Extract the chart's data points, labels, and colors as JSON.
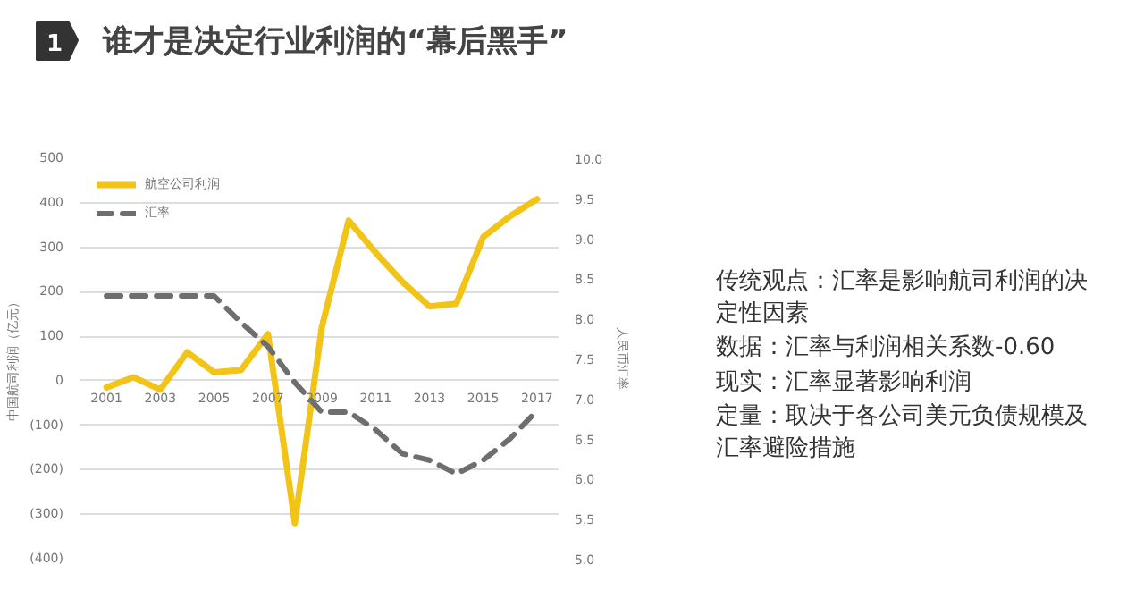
{
  "chart_data": {
    "type": "line",
    "title": "谁才是决定行业利润的“幕后黑手”",
    "ylabel": "中国航司利润（亿元）",
    "y2label": "人民币汇率",
    "x": [
      2001,
      2002,
      2003,
      2004,
      2005,
      2006,
      2007,
      2008,
      2009,
      2010,
      2011,
      2012,
      2013,
      2014,
      2015,
      2016,
      2017
    ],
    "series": [
      {
        "name": "航空公司利润",
        "color": "#f2c417",
        "line_style": "solid",
        "values": [
          -15,
          8,
          -20,
          64,
          19,
          24,
          105,
          -320,
          120,
          360,
          288,
          222,
          167,
          173,
          323,
          370,
          408
        ]
      },
      {
        "name": "汇率",
        "color": "#6e6e6e",
        "line_style": "dashed",
        "axis": "y2",
        "values": [
          8.28,
          8.28,
          8.28,
          8.28,
          8.28,
          7.95,
          7.65,
          7.2,
          6.83,
          6.83,
          6.61,
          6.31,
          6.23,
          6.06,
          6.23,
          6.5,
          6.85
        ]
      }
    ],
    "xlim": [
      2000,
      2017.8
    ],
    "xticks": [
      2001,
      2003,
      2005,
      2007,
      2009,
      2011,
      2013,
      2015,
      2017
    ],
    "ylim": [
      -400,
      500
    ],
    "yticks": [
      {
        "value": -400,
        "label": "(400)"
      },
      {
        "value": -300,
        "label": "(300)"
      },
      {
        "value": -200,
        "label": "(200)"
      },
      {
        "value": -100,
        "label": "(100)"
      },
      0,
      100,
      200,
      300,
      400,
      500
    ],
    "y2lim": [
      5,
      10
    ],
    "y2ticks": [
      {
        "value": 5,
        "label": "5.0"
      },
      {
        "value": 5.5,
        "label": "5.5"
      },
      {
        "value": 6,
        "label": "6.0"
      },
      {
        "value": 6.5,
        "label": "6.5"
      },
      {
        "value": 7,
        "label": "7.0"
      },
      {
        "value": 7.5,
        "label": "7.5"
      },
      {
        "value": 8,
        "label": "8.0"
      },
      {
        "value": 8.5,
        "label": "8.5"
      },
      {
        "value": 9,
        "label": "9.0"
      },
      {
        "value": 9.5,
        "label": "9.5"
      },
      {
        "value": 10,
        "label": "10.0"
      }
    ],
    "grid": "y",
    "legend": "top left",
    "annotations": [
      "1",
      "传统观点：汇率是影响航司利润的决定性因素",
      "数据：汇率与利润相关系数-0.60",
      "现实：汇率显著影响利润",
      "定量：取决于各公司美元负债规模及汇率避险措施"
    ]
  }
}
